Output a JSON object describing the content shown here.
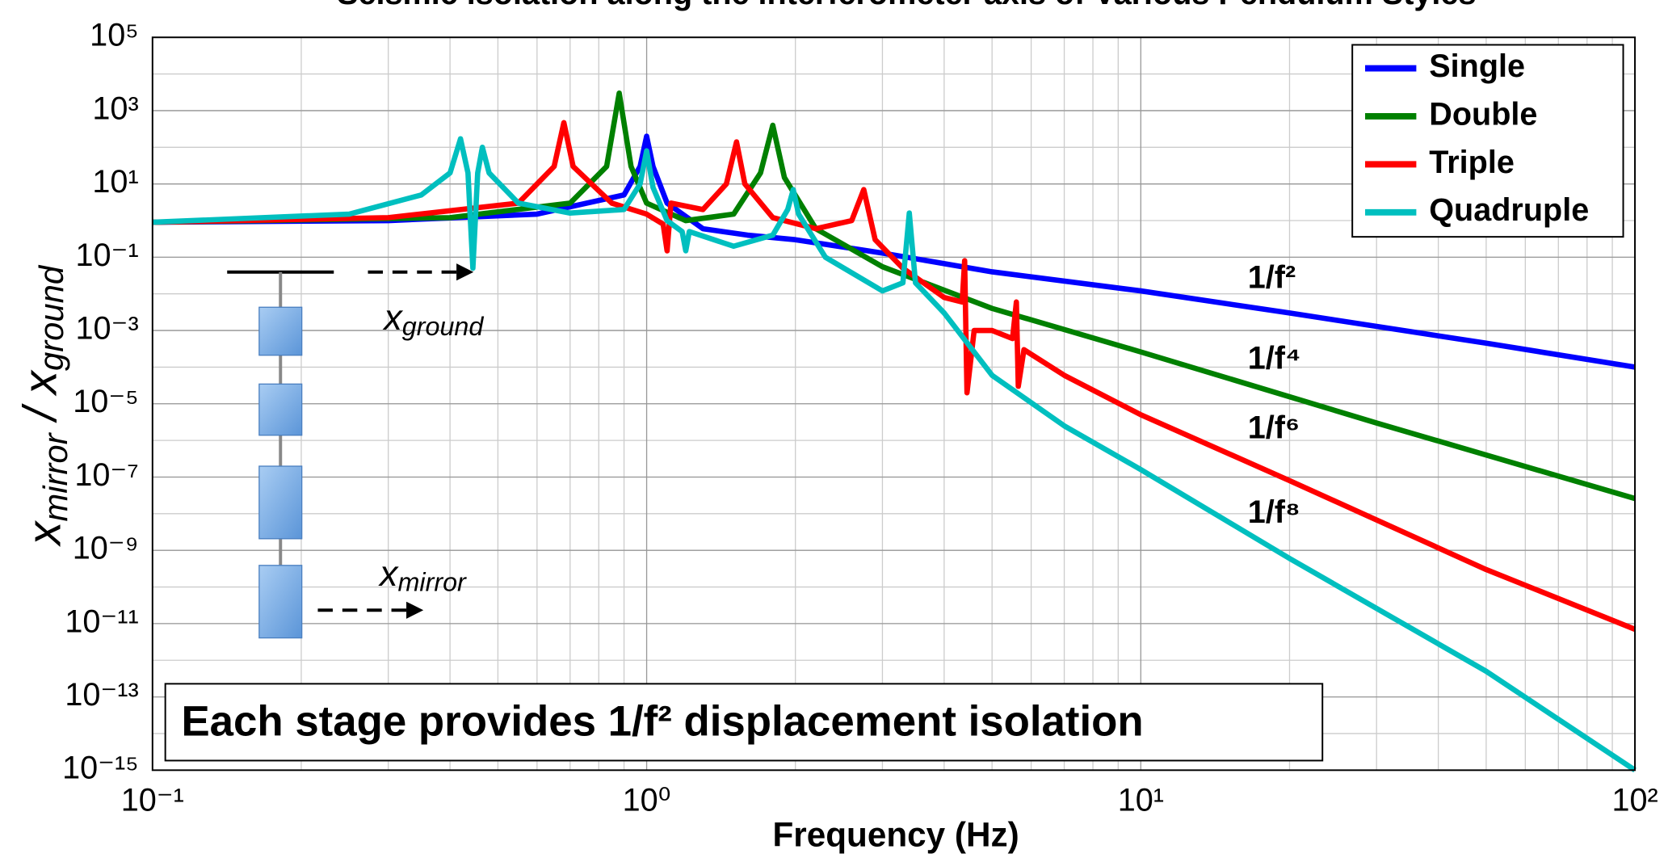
{
  "chart_data": {
    "type": "line",
    "title": "Seismic isolation along the interferometer axis of Various Pendulum Styles",
    "xlabel": "Frequency (Hz)",
    "ylabel": [
      "x",
      "mirror",
      " / x",
      "ground"
    ],
    "log_x": true,
    "log_y": true,
    "grid": true,
    "legend": "upper right",
    "xlim": [
      0.1,
      100
    ],
    "xticks": [
      {
        "value": 0.1,
        "label": "10⁻¹"
      },
      {
        "value": 1,
        "label": "10⁰"
      },
      {
        "value": 10,
        "label": "10¹"
      },
      {
        "value": 100,
        "label": "10²"
      }
    ],
    "ylim": [
      1e-15,
      100000
    ],
    "yticks": [
      {
        "value": 1e-15,
        "label": "10⁻¹⁵"
      },
      {
        "value": 1e-13,
        "label": "10⁻¹³"
      },
      {
        "value": 1e-11,
        "label": "10⁻¹¹"
      },
      {
        "value": 1e-09,
        "label": "10⁻⁹"
      },
      {
        "value": 1e-07,
        "label": "10⁻⁷"
      },
      {
        "value": 1e-05,
        "label": "10⁻⁵"
      },
      {
        "value": 0.001,
        "label": "10⁻³"
      },
      {
        "value": 0.1,
        "label": "10⁻¹"
      },
      {
        "value": 10,
        "label": "10¹"
      },
      {
        "value": 1000,
        "label": "10³"
      },
      {
        "value": 100000,
        "label": "10⁵"
      }
    ],
    "series": [
      {
        "name": "Single",
        "color": "#0000ff",
        "x": [
          0.1,
          0.3,
          0.6,
          0.9,
          0.97,
          1.0,
          1.03,
          1.1,
          1.3,
          1.6,
          2,
          3,
          5,
          10,
          20,
          50,
          100
        ],
        "values": [
          0.9,
          1,
          1.5,
          5,
          30,
          200,
          30,
          3,
          0.6,
          0.4,
          0.3,
          0.13,
          0.04,
          0.012,
          0.003,
          0.00045,
          0.0001
        ]
      },
      {
        "name": "Double",
        "color": "#008000",
        "x": [
          0.1,
          0.4,
          0.7,
          0.83,
          0.88,
          0.93,
          1.0,
          1.2,
          1.5,
          1.7,
          1.8,
          1.9,
          2.2,
          3,
          5,
          10,
          30,
          100
        ],
        "values": [
          0.9,
          1.2,
          3,
          30,
          3000,
          30,
          3,
          1,
          1.5,
          20,
          400,
          15,
          0.6,
          0.055,
          0.004,
          0.00026,
          3e-06,
          2.6e-08
        ]
      },
      {
        "name": "Triple",
        "color": "#ff0000",
        "x": [
          0.1,
          0.3,
          0.55,
          0.65,
          0.68,
          0.71,
          0.85,
          1.0,
          1.08,
          1.1,
          1.12,
          1.3,
          1.45,
          1.52,
          1.58,
          1.8,
          2.2,
          2.6,
          2.75,
          2.9,
          3.3,
          4,
          4.35,
          4.4,
          4.45,
          4.6,
          5,
          5.5,
          5.6,
          5.65,
          5.8,
          7,
          10,
          20,
          50,
          100
        ],
        "values": [
          0.9,
          1.2,
          3,
          30,
          470,
          30,
          3,
          1.5,
          0.8,
          0.15,
          3,
          2,
          10,
          140,
          10,
          1.2,
          0.6,
          1,
          7,
          0.3,
          0.05,
          0.008,
          0.006,
          0.08,
          2e-05,
          0.001,
          0.001,
          0.0006,
          0.006,
          3e-05,
          0.0003,
          6e-05,
          5e-06,
          8e-08,
          3e-10,
          7e-12
        ]
      },
      {
        "name": "Quadruple",
        "color": "#00bfbf",
        "x": [
          0.1,
          0.25,
          0.35,
          0.4,
          0.42,
          0.435,
          0.445,
          0.455,
          0.465,
          0.48,
          0.55,
          0.7,
          0.9,
          0.97,
          1.0,
          1.03,
          1.1,
          1.18,
          1.2,
          1.22,
          1.5,
          1.8,
          1.93,
          1.98,
          2.03,
          2.3,
          3,
          3.3,
          3.4,
          3.5,
          4,
          5,
          7,
          10,
          20,
          50,
          100
        ],
        "values": [
          0.9,
          1.5,
          5,
          20,
          170,
          20,
          0.05,
          20,
          100,
          20,
          3,
          1.6,
          2,
          10,
          80,
          8,
          1,
          0.5,
          0.15,
          0.5,
          0.2,
          0.4,
          2,
          7,
          1.5,
          0.1,
          0.012,
          0.02,
          1.6,
          0.02,
          0.003,
          6e-05,
          2.5e-06,
          1.6e-07,
          6e-10,
          5e-13,
          1e-15
        ]
      }
    ],
    "annotations": [
      "1/f²",
      "1/f⁴",
      "1/f⁶",
      "1/f⁸"
    ],
    "note": "Each stage provides 1/f² displacement isolation",
    "diagram": {
      "ground_label": [
        "x",
        "ground"
      ],
      "mirror_label": [
        "x",
        "mirror"
      ]
    }
  }
}
